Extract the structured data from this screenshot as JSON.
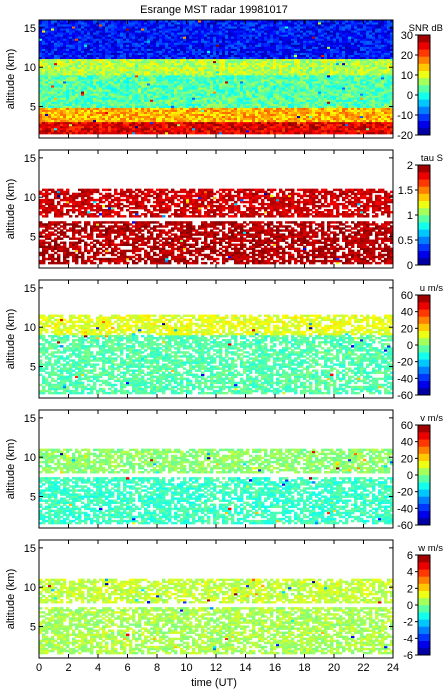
{
  "chart_data": {
    "type": "heatmap",
    "title": "Esrange MST radar 19981017",
    "xlabel": "time (UT)",
    "xlim": [
      0,
      24
    ],
    "xticks": [
      0,
      2,
      4,
      6,
      8,
      10,
      12,
      14,
      16,
      18,
      20,
      22,
      24
    ],
    "colormap": "jet",
    "panels": [
      {
        "ylabel": "altitude (km)",
        "ylim": [
          1,
          16
        ],
        "yticks": [
          5,
          10,
          15
        ],
        "colorbar_label": "SNR dB",
        "clim": [
          -20,
          30
        ],
        "cticks": [
          -20,
          -10,
          0,
          10,
          20,
          30
        ],
        "layers": [
          {
            "alt_range": [
              1.5,
              3.0
            ],
            "value": 25
          },
          {
            "alt_range": [
              3.0,
              5.0
            ],
            "value": 15
          },
          {
            "alt_range": [
              5.0,
              9.0
            ],
            "value": 3
          },
          {
            "alt_range": [
              9.0,
              11.0
            ],
            "value": 8
          },
          {
            "alt_range": [
              11.0,
              16.0
            ],
            "value": -13
          }
        ]
      },
      {
        "ylabel": "altitude (km)",
        "ylim": [
          1,
          16
        ],
        "yticks": [
          5,
          10,
          15
        ],
        "colorbar_label": "tau S",
        "clim": [
          0,
          2
        ],
        "cticks": [
          0,
          0.5,
          1,
          1.5,
          2
        ],
        "layers": [
          {
            "alt_range": [
              1.5,
              7.0
            ],
            "value": 1.9
          },
          {
            "alt_range": [
              7.5,
              11.0
            ],
            "value": 1.85
          }
        ]
      },
      {
        "ylabel": "altitude (km)",
        "ylim": [
          1,
          16
        ],
        "yticks": [
          5,
          10,
          15
        ],
        "colorbar_label": "u m/s",
        "clim": [
          -60,
          60
        ],
        "cticks": [
          -60,
          -40,
          -20,
          0,
          20,
          40,
          60
        ],
        "layers": [
          {
            "alt_range": [
              1.5,
              9.0
            ],
            "value": -5
          },
          {
            "alt_range": [
              9.0,
              11.5
            ],
            "value": 12
          }
        ]
      },
      {
        "ylabel": "altitude (km)",
        "ylim": [
          1,
          16
        ],
        "yticks": [
          5,
          10,
          15
        ],
        "colorbar_label": "v m/s",
        "clim": [
          -60,
          60
        ],
        "cticks": [
          -60,
          -40,
          -20,
          0,
          20,
          40,
          60
        ],
        "layers": [
          {
            "alt_range": [
              1.5,
              7.5
            ],
            "value": -8
          },
          {
            "alt_range": [
              8.0,
              11.0
            ],
            "value": 2
          }
        ]
      },
      {
        "ylabel": "altitude (km)",
        "ylim": [
          1,
          16
        ],
        "yticks": [
          5,
          10,
          15
        ],
        "colorbar_label": "w m/s",
        "clim": [
          -6,
          6
        ],
        "cticks": [
          -6,
          -4,
          -2,
          0,
          2,
          4,
          6
        ],
        "layers": [
          {
            "alt_range": [
              1.5,
              7.5
            ],
            "value": 0.5
          },
          {
            "alt_range": [
              8.0,
              11.0
            ],
            "value": 0.8
          }
        ]
      }
    ]
  }
}
